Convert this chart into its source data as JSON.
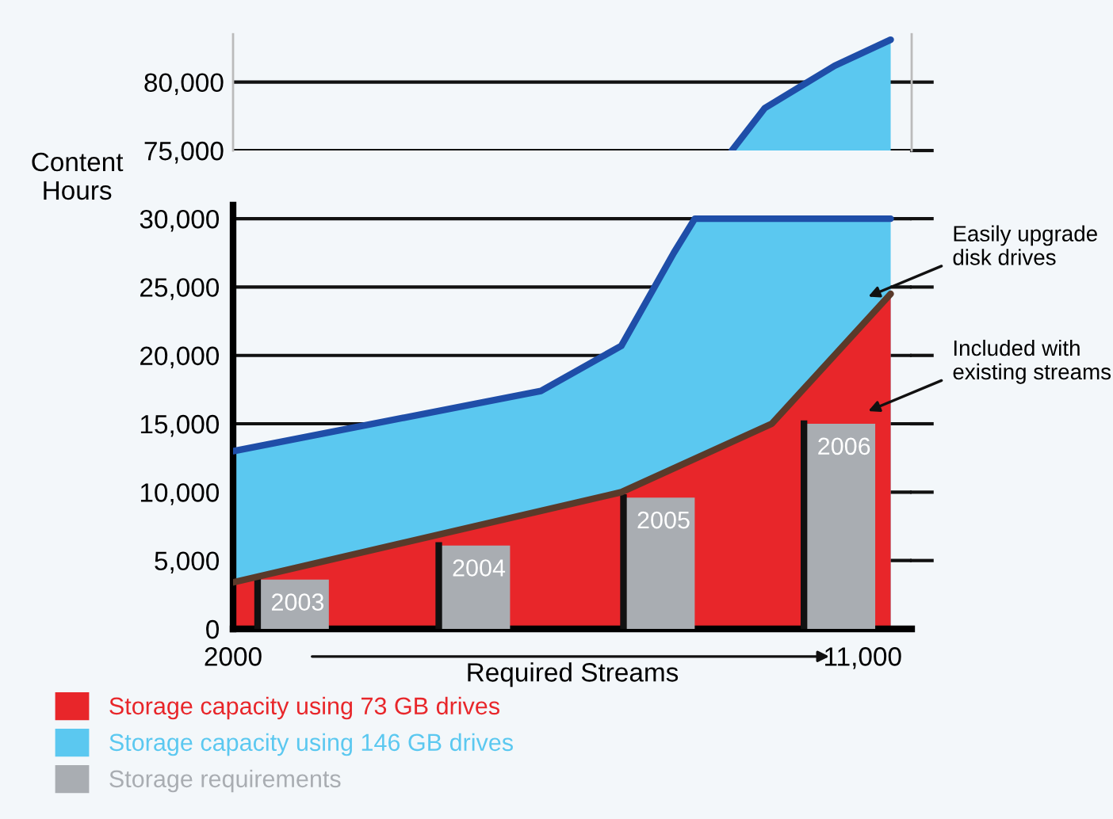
{
  "chart_data": [
    {
      "type": "area",
      "xlim": [
        2000,
        11700
      ],
      "ylim": [
        75000,
        83500
      ],
      "yticks": [
        {
          "value": 75000,
          "label": "75,000"
        },
        {
          "value": 80000,
          "label": "80,000"
        }
      ],
      "grid": "y",
      "tick_labels": "y",
      "series": [
        {
          "color": "#5bc8f0",
          "x": [
            9130,
            9600,
            10600,
            11400
          ],
          "values": [
            75000,
            78100,
            81200,
            83100
          ]
        }
      ]
    },
    {
      "type": "area",
      "xlabel": "Required Streams",
      "ylabel": "Content\nHours",
      "xlim": [
        2000,
        11700
      ],
      "ylim": [
        0,
        31000
      ],
      "xticks": [
        {
          "value": 2000,
          "label": "2000"
        },
        {
          "value": 11000,
          "label": "11,000"
        }
      ],
      "yticks": [
        0,
        {
          "value": 5000,
          "label": "5,000"
        },
        {
          "value": 10000,
          "label": "10,000"
        },
        {
          "value": 15000,
          "label": "15,000"
        },
        {
          "value": 20000,
          "label": "20,000"
        },
        {
          "value": 25000,
          "label": "25,000"
        },
        {
          "value": 30000,
          "label": "30,000"
        }
      ],
      "grid": "y",
      "legend": "bottom",
      "series": [
        {
          "name": "Storage capacity using 146 GB drives",
          "color": "#5bc8f0",
          "x": [
            2000,
            6400,
            7550,
            8300,
            8600,
            11400
          ],
          "values": [
            13000,
            17400,
            20700,
            27500,
            30000,
            30000
          ]
        },
        {
          "name": "Storage capacity using 73 GB drives",
          "color": "#e8262a",
          "x": [
            2000,
            7550,
            9700,
            11400
          ],
          "values": [
            3400,
            10000,
            15000,
            24500
          ]
        },
        {
          "type": "bar",
          "name": "Storage requirements",
          "color": "#a9adb2",
          "x": [
            2860,
            5450,
            8090,
            10670
          ],
          "values": [
            3600,
            6100,
            9600,
            15000
          ]
        }
      ],
      "annotations": [
        {
          "text": "2003",
          "x": 2860,
          "y": 3600
        },
        {
          "text": "2004",
          "x": 5450,
          "y": 6100
        },
        {
          "text": "2005",
          "x": 8090,
          "y": 9600
        },
        {
          "text": "2006",
          "x": 10670,
          "y": 15000
        },
        "Easily upgrade\ndisk drives",
        "Included with\nexisting streams"
      ]
    }
  ]
}
